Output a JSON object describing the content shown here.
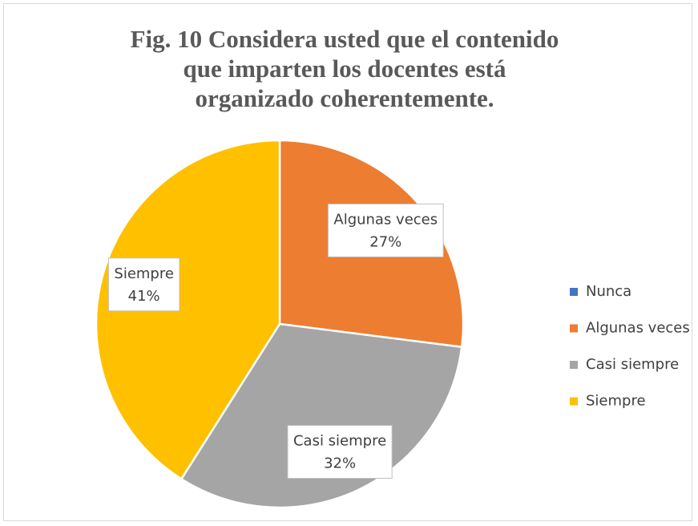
{
  "chart_data": {
    "type": "pie",
    "title": "Fig. 10 Considera usted que el contenido que imparten los docentes está organizado coherentemente.",
    "categories": [
      "Nunca",
      "Algunas veces",
      "Casi siempre",
      "Siempre"
    ],
    "values": [
      0,
      27,
      32,
      41
    ],
    "value_labels": [
      null,
      "27%",
      "32%",
      "41%"
    ],
    "colors": [
      "#4472c4",
      "#ed7d31",
      "#a5a5a5",
      "#ffc000"
    ],
    "legend": "right"
  }
}
